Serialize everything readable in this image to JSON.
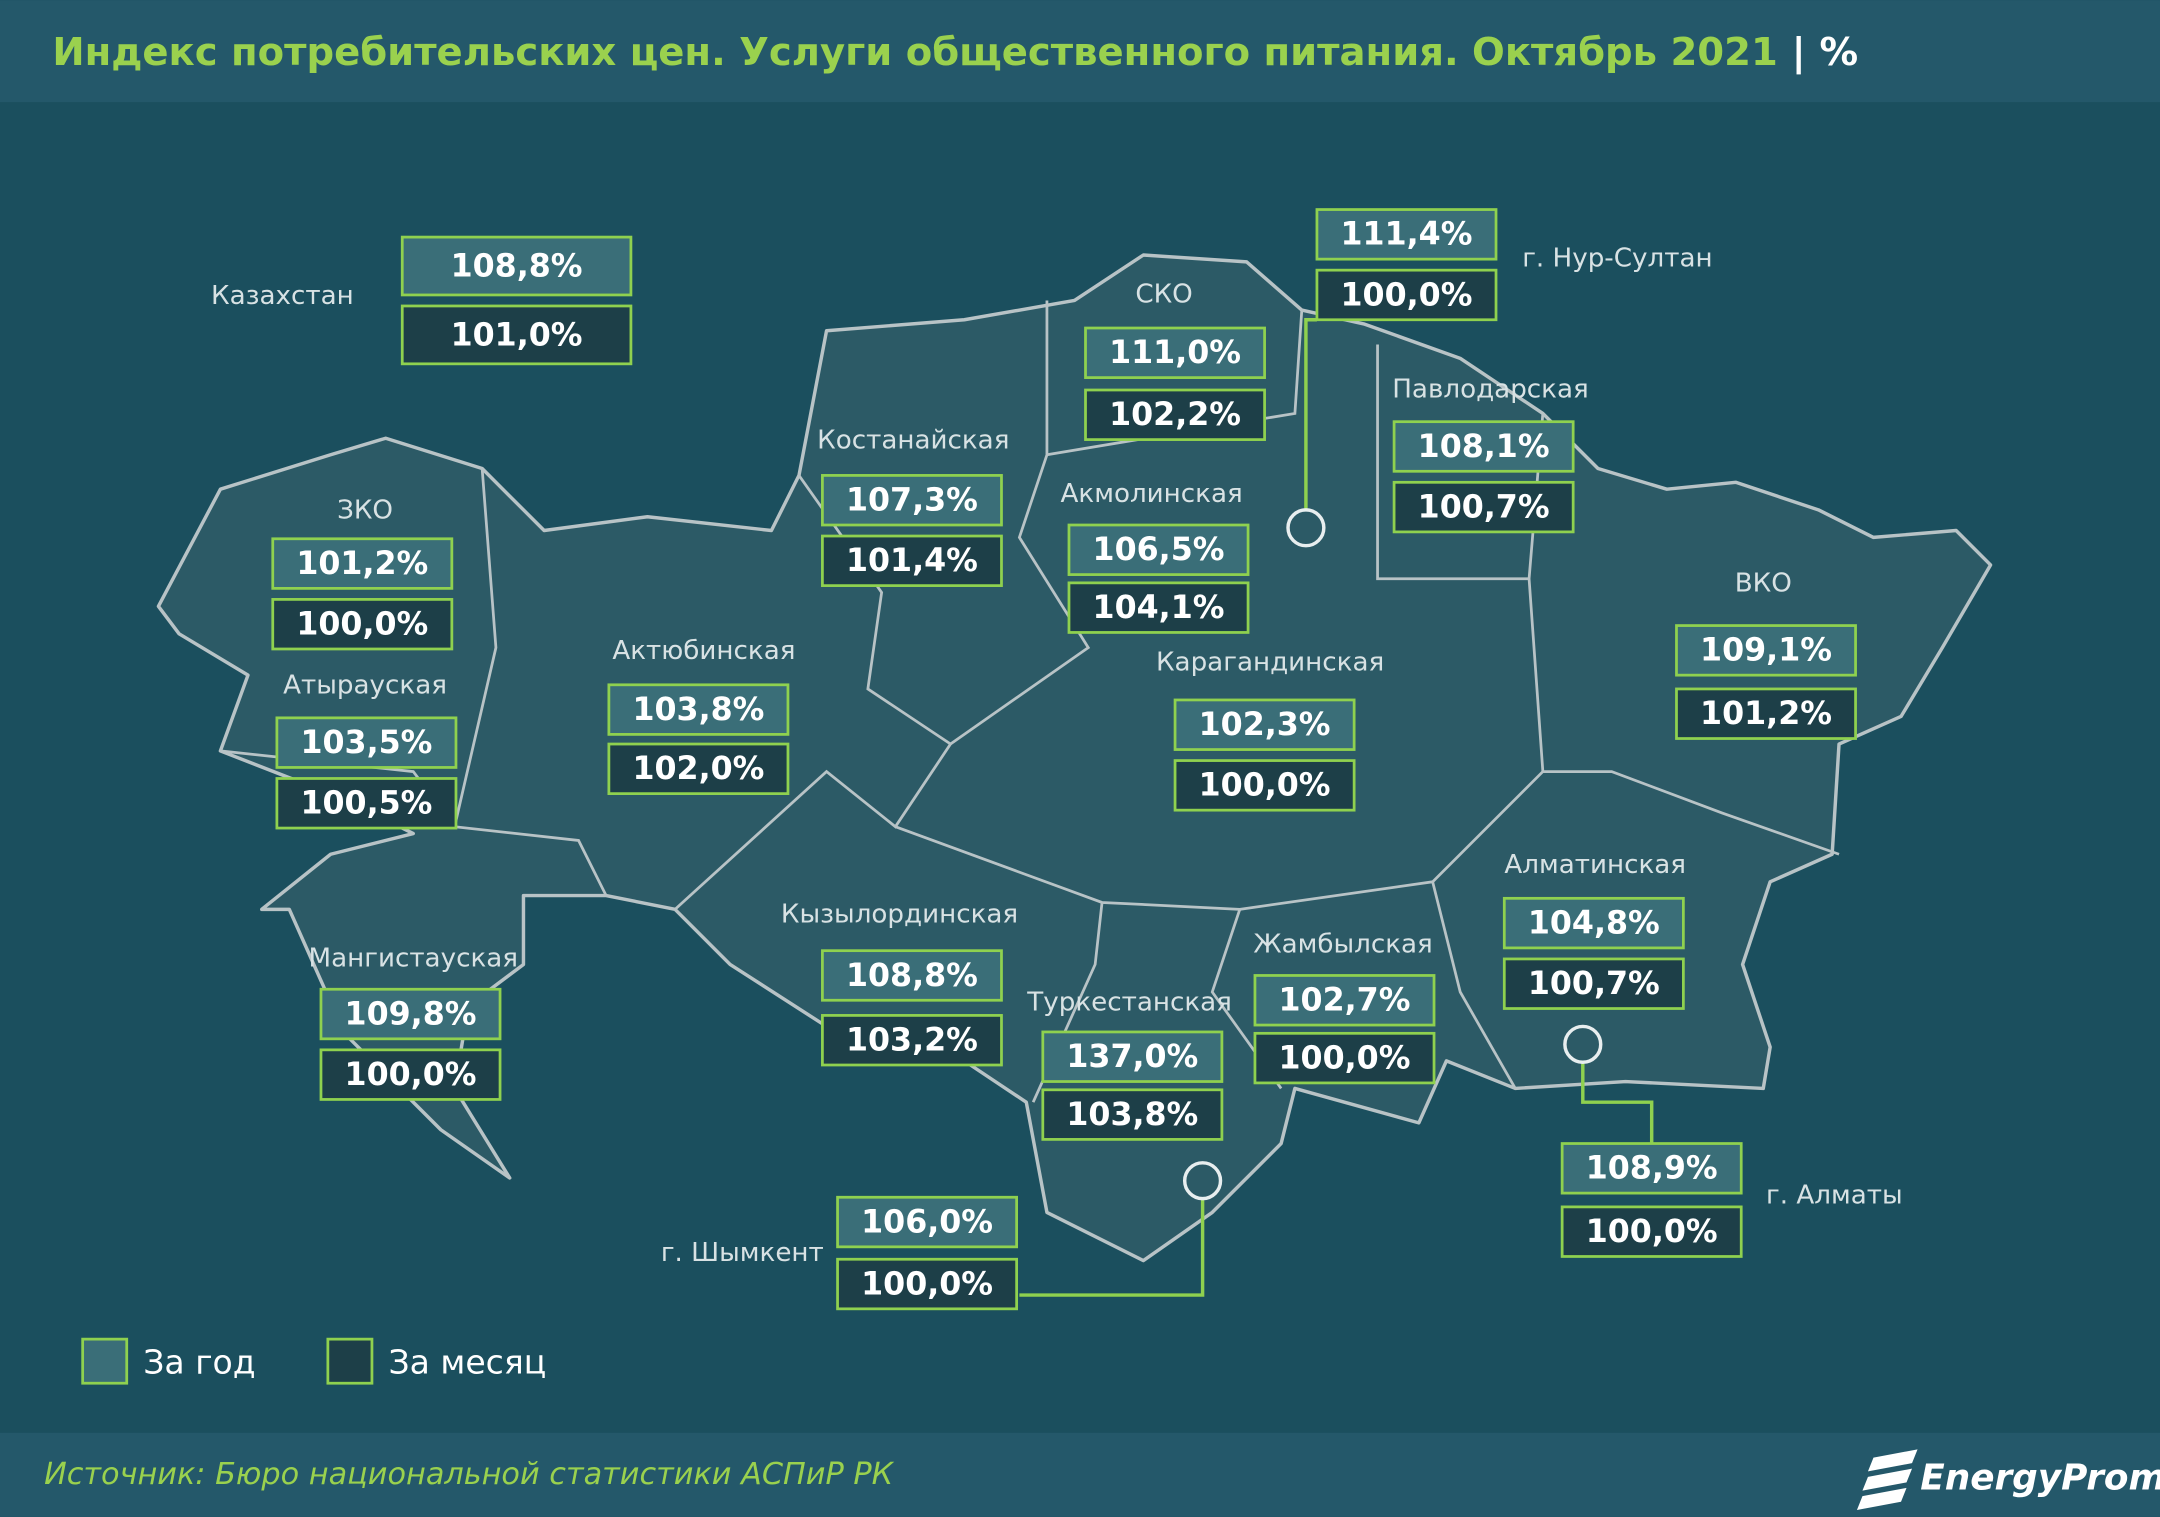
{
  "title": "Индекс потребительских цен. Услуги общественного питания. Октябрь 2021",
  "unit": "%",
  "regions": [
    {
      "name": "Казахстан",
      "year": "108,8%",
      "month": "101,0%"
    },
    {
      "name": "г. Нур-Султан",
      "year": "111,4%",
      "month": "100,0%"
    },
    {
      "name": "СКО",
      "year": "111,0%",
      "month": "102,2%"
    },
    {
      "name": "Павлодарская",
      "year": "108,1%",
      "month": "100,7%"
    },
    {
      "name": "Костанайская",
      "year": "107,3%",
      "month": "101,4%"
    },
    {
      "name": "Акмолинская",
      "year": "106,5%",
      "month": "104,1%"
    },
    {
      "name": "ЗКО",
      "year": "101,2%",
      "month": "100,0%"
    },
    {
      "name": "ВКО",
      "year": "109,1%",
      "month": "101,2%"
    },
    {
      "name": "Актюбинская",
      "year": "103,8%",
      "month": "102,0%"
    },
    {
      "name": "Карагандинская",
      "year": "102,3%",
      "month": "100,0%"
    },
    {
      "name": "Атырауская",
      "year": "103,5%",
      "month": "100,5%"
    },
    {
      "name": "Алматинская",
      "year": "104,8%",
      "month": "100,7%"
    },
    {
      "name": "Кызылординская",
      "year": "108,8%",
      "month": "103,2%"
    },
    {
      "name": "Жамбылская",
      "year": "102,7%",
      "month": "100,0%"
    },
    {
      "name": "Мангистауская",
      "year": "109,8%",
      "month": "100,0%"
    },
    {
      "name": "Туркестанская",
      "year": "137,0%",
      "month": "103,8%"
    },
    {
      "name": "г. Алматы",
      "year": "108,9%",
      "month": "100,0%"
    },
    {
      "name": "г. Шымкент",
      "year": "106,0%",
      "month": "100,0%"
    }
  ],
  "legend": {
    "year": "За год",
    "month": "За месяц"
  },
  "source": "Источник: Бюро национальной статистики АСПиР РК",
  "brand": "EnergyProm"
}
